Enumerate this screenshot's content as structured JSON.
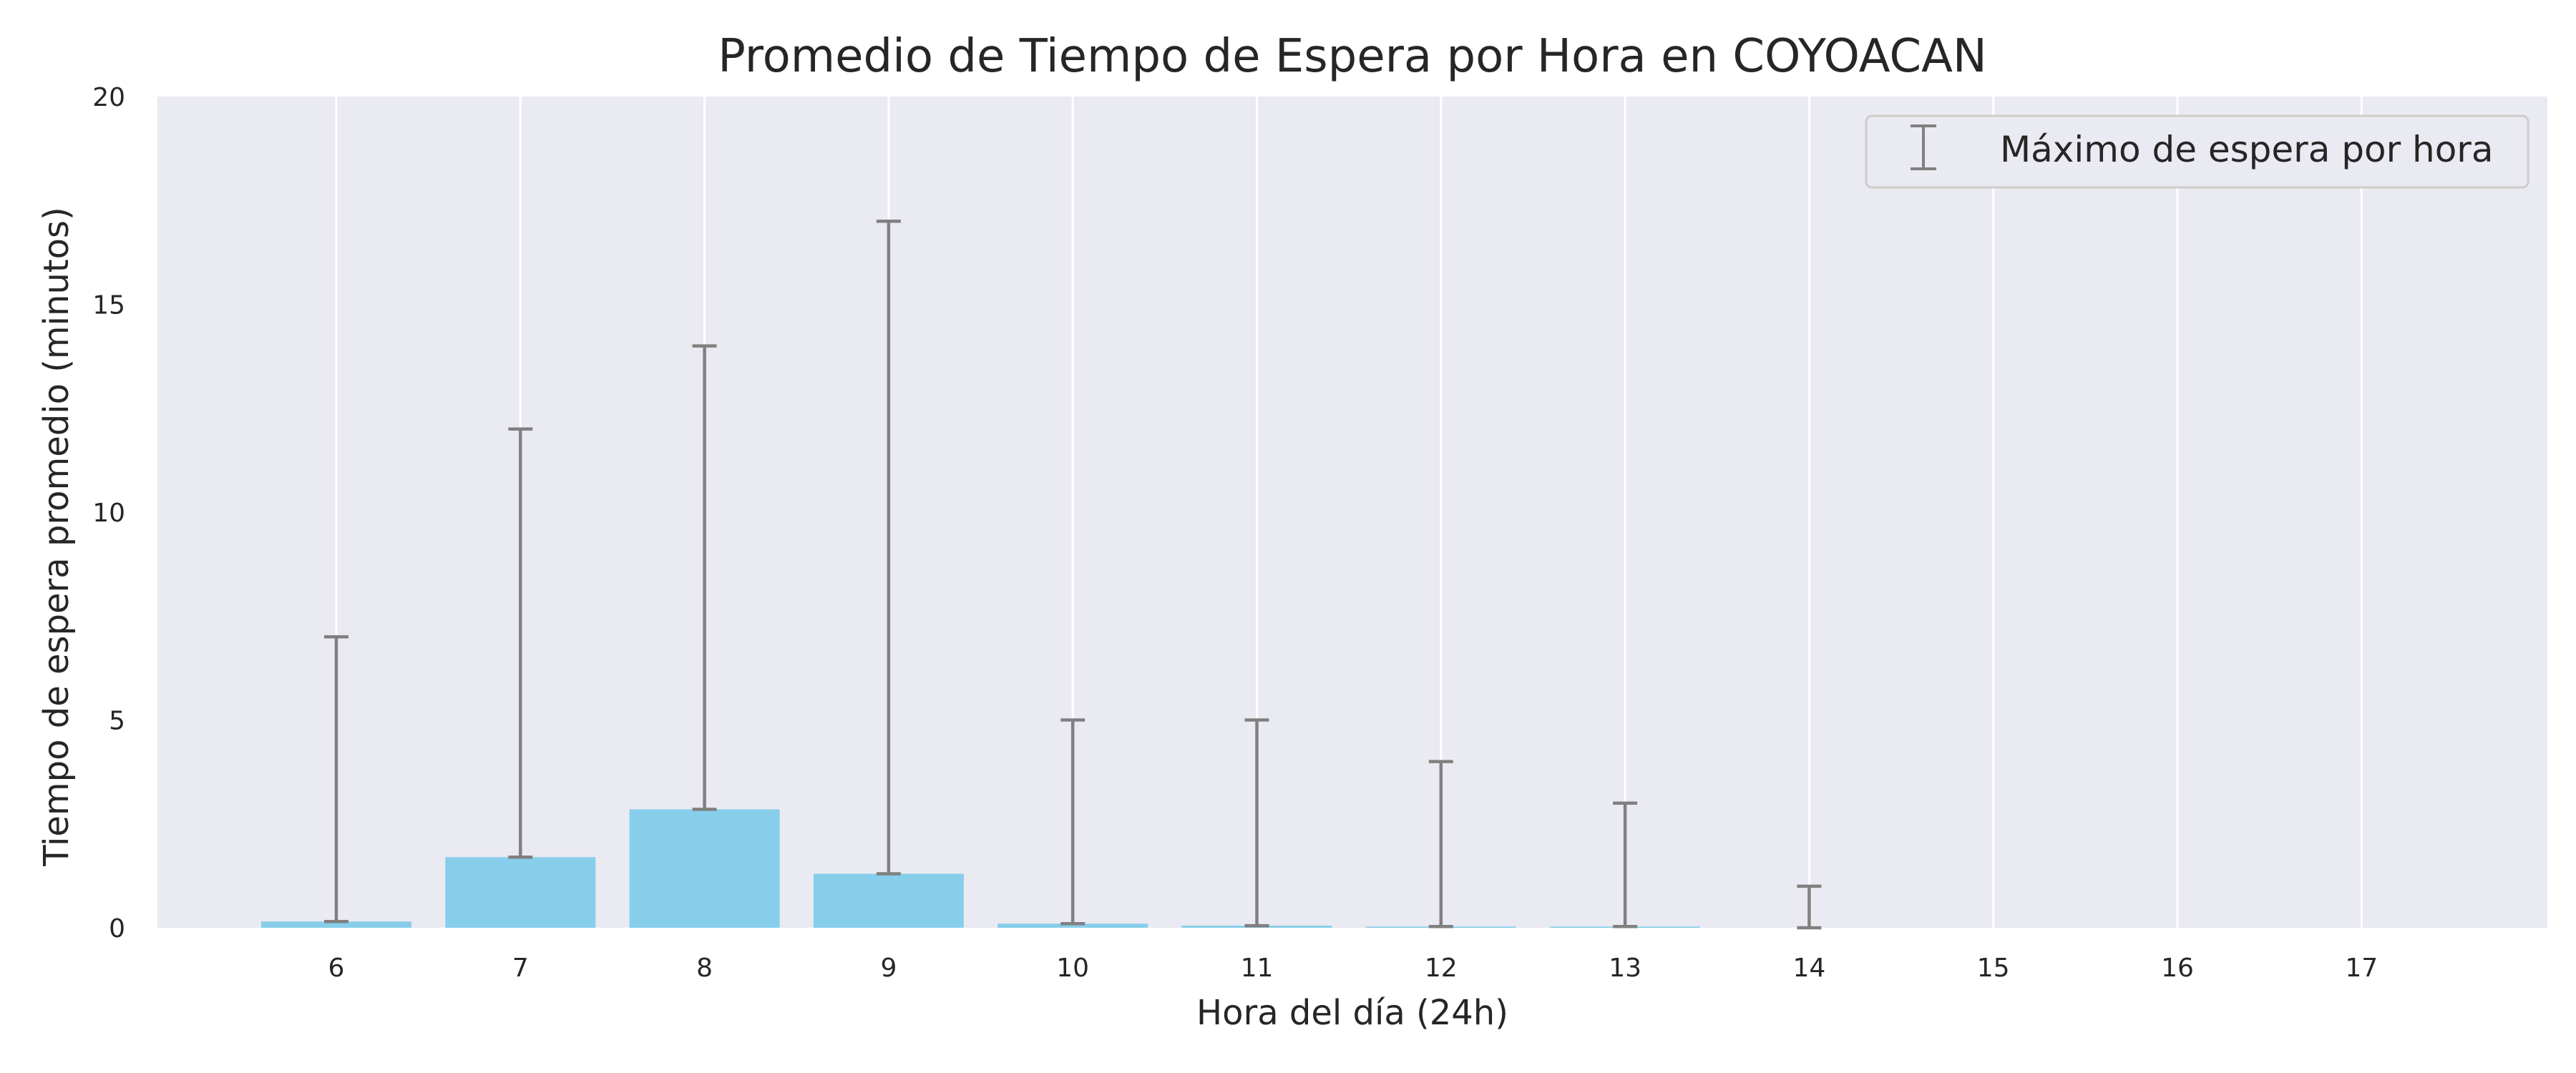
{
  "chart_data": {
    "type": "bar",
    "title": "Promedio de Tiempo de Espera por Hora en COYOACAN",
    "xlabel": "Hora del día (24h)",
    "ylabel": "Tiempo de espera promedio (minutos)",
    "categories": [
      "6",
      "7",
      "8",
      "9",
      "10",
      "11",
      "12",
      "13",
      "14",
      "15",
      "16",
      "17"
    ],
    "series": [
      {
        "values": [
          0.15,
          1.7,
          2.85,
          1.3,
          0.1,
          0.05,
          0.03,
          0.03,
          0.0,
          0.0,
          0.0,
          0.0
        ]
      }
    ],
    "error_max": {
      "name": "Máximo de espera por hora",
      "values": [
        7,
        12,
        14,
        17,
        5,
        5,
        4,
        3,
        1,
        0,
        0,
        0
      ]
    },
    "ylim": [
      0,
      20
    ],
    "yticks": [
      0,
      5,
      10,
      15,
      20
    ],
    "grid": "vertical",
    "legend_position": "top-right",
    "colors": {
      "bar": "#87ceeb",
      "errorbar": "#808080",
      "background": "#eaeaf2",
      "grid": "#ffffff"
    }
  }
}
